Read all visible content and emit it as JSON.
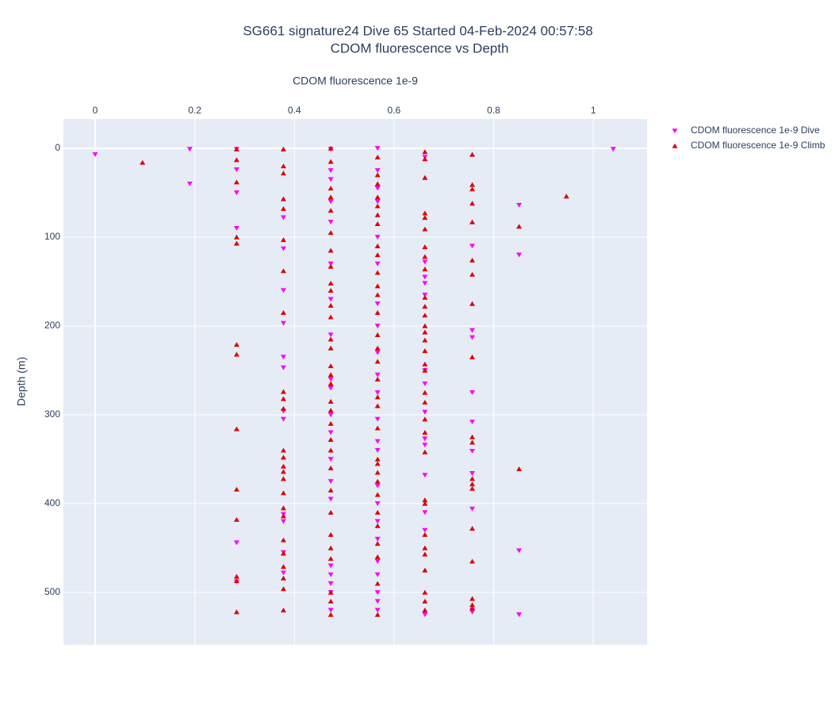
{
  "chart_data": {
    "type": "scatter",
    "title": "SG661 signature24 Dive 65 Started 04-Feb-2024 00:57:58",
    "subtitle": "CDOM fluorescence vs Depth",
    "x_label": "CDOM fluorescence 1e-9",
    "y_label": "Depth (m)",
    "x_axis_side": "top",
    "y_reversed": true,
    "grid": true,
    "legend": "top-right",
    "xlim": [
      -0.0637,
      1.108
    ],
    "xticks": [
      0,
      0.2,
      0.4,
      0.6,
      0.8,
      1
    ],
    "ylim": [
      -33,
      559
    ],
    "yticks": [
      0,
      100,
      200,
      300,
      400,
      500
    ],
    "series": [
      {
        "name": "CDOM fluorescence 1e-9 Dive",
        "color": "#ff00ff",
        "marker": "triangle-down",
        "x": [
          0,
          0.19,
          0.19,
          0.284,
          0.284,
          0.284,
          0.284,
          0.284,
          0.284,
          0.378,
          0.378,
          0.378,
          0.378,
          0.378,
          0.378,
          0.378,
          0.378,
          0.378,
          0.378,
          0.378,
          0.378,
          0.473,
          0.473,
          0.473,
          0.473,
          0.473,
          0.473,
          0.473,
          0.473,
          0.473,
          0.473,
          0.473,
          0.473,
          0.473,
          0.473,
          0.473,
          0.473,
          0.473,
          0.473,
          0.473,
          0.473,
          0.567,
          0.567,
          0.567,
          0.567,
          0.567,
          0.567,
          0.567,
          0.567,
          0.567,
          0.567,
          0.567,
          0.567,
          0.567,
          0.567,
          0.567,
          0.567,
          0.567,
          0.567,
          0.567,
          0.567,
          0.567,
          0.567,
          0.567,
          0.662,
          0.662,
          0.662,
          0.662,
          0.662,
          0.662,
          0.662,
          0.662,
          0.662,
          0.662,
          0.662,
          0.662,
          0.662,
          0.662,
          0.757,
          0.757,
          0.757,
          0.757,
          0.757,
          0.757,
          0.757,
          0.757,
          0.757,
          0.757,
          0.851,
          0.851,
          0.851,
          0.851,
          1.04
        ],
        "values": [
          7,
          1,
          40,
          1,
          24,
          50,
          90,
          444,
          488,
          78,
          113,
          160,
          197,
          235,
          247,
          296,
          305,
          412,
          420,
          455,
          478,
          1,
          25,
          35,
          60,
          83,
          130,
          170,
          210,
          260,
          270,
          300,
          320,
          350,
          375,
          395,
          470,
          480,
          490,
          500,
          520,
          0,
          25,
          45,
          60,
          100,
          130,
          175,
          200,
          230,
          255,
          275,
          305,
          330,
          340,
          380,
          400,
          420,
          440,
          465,
          480,
          500,
          510,
          520,
          10,
          128,
          145,
          152,
          165,
          250,
          265,
          297,
          327,
          334,
          368,
          410,
          430,
          525,
          110,
          205,
          213,
          275,
          308,
          341,
          366,
          406,
          520,
          522,
          64,
          120,
          453,
          525,
          1
        ]
      },
      {
        "name": "CDOM fluorescence 1e-9 Climb",
        "color": "#e00000",
        "marker": "triangle-up",
        "x": [
          0.095,
          0.284,
          0.284,
          0.284,
          0.284,
          0.284,
          0.284,
          0.284,
          0.284,
          0.284,
          0.284,
          0.284,
          0.284,
          0.284,
          0.378,
          0.378,
          0.378,
          0.378,
          0.378,
          0.378,
          0.378,
          0.378,
          0.378,
          0.378,
          0.378,
          0.378,
          0.378,
          0.378,
          0.378,
          0.378,
          0.378,
          0.378,
          0.378,
          0.378,
          0.378,
          0.378,
          0.378,
          0.378,
          0.378,
          0.473,
          0.473,
          0.473,
          0.473,
          0.473,
          0.473,
          0.473,
          0.473,
          0.473,
          0.473,
          0.473,
          0.473,
          0.473,
          0.473,
          0.473,
          0.473,
          0.473,
          0.473,
          0.473,
          0.473,
          0.473,
          0.473,
          0.473,
          0.473,
          0.473,
          0.473,
          0.473,
          0.473,
          0.473,
          0.473,
          0.473,
          0.567,
          0.567,
          0.567,
          0.567,
          0.567,
          0.567,
          0.567,
          0.567,
          0.567,
          0.567,
          0.567,
          0.567,
          0.567,
          0.567,
          0.567,
          0.567,
          0.567,
          0.567,
          0.567,
          0.567,
          0.567,
          0.567,
          0.567,
          0.567,
          0.567,
          0.567,
          0.567,
          0.567,
          0.567,
          0.567,
          0.567,
          0.662,
          0.662,
          0.662,
          0.662,
          0.662,
          0.662,
          0.662,
          0.662,
          0.662,
          0.662,
          0.662,
          0.662,
          0.662,
          0.662,
          0.662,
          0.662,
          0.662,
          0.662,
          0.662,
          0.662,
          0.662,
          0.662,
          0.662,
          0.662,
          0.662,
          0.662,
          0.662,
          0.662,
          0.662,
          0.662,
          0.662,
          0.662,
          0.757,
          0.757,
          0.757,
          0.757,
          0.757,
          0.757,
          0.757,
          0.757,
          0.757,
          0.757,
          0.757,
          0.757,
          0.757,
          0.757,
          0.757,
          0.757,
          0.757,
          0.757,
          0.757,
          0.851,
          0.851,
          0.946
        ],
        "values": [
          16,
          1,
          13,
          38,
          100,
          107,
          221,
          232,
          316,
          384,
          418,
          482,
          487,
          522,
          1,
          20,
          28,
          57,
          68,
          103,
          138,
          185,
          274,
          282,
          293,
          340,
          348,
          358,
          364,
          372,
          388,
          405,
          414,
          441,
          456,
          471,
          484,
          496,
          520,
          0,
          15,
          45,
          55,
          70,
          95,
          115,
          133,
          152,
          160,
          177,
          190,
          215,
          225,
          245,
          255,
          265,
          285,
          295,
          310,
          328,
          340,
          360,
          385,
          410,
          435,
          450,
          462,
          500,
          510,
          525,
          10,
          30,
          40,
          55,
          65,
          75,
          85,
          110,
          120,
          140,
          155,
          165,
          185,
          210,
          225,
          240,
          260,
          280,
          290,
          315,
          350,
          355,
          365,
          375,
          390,
          410,
          425,
          445,
          460,
          490,
          525,
          4,
          12,
          33,
          73,
          78,
          91,
          111,
          122,
          136,
          168,
          178,
          188,
          200,
          207,
          216,
          228,
          243,
          250,
          275,
          286,
          305,
          320,
          342,
          396,
          400,
          435,
          450,
          457,
          475,
          500,
          510,
          520,
          7,
          41,
          46,
          62,
          83,
          126,
          142,
          175,
          235,
          325,
          331,
          372,
          378,
          383,
          428,
          465,
          507,
          514,
          518,
          88,
          361,
          54
        ]
      }
    ]
  }
}
